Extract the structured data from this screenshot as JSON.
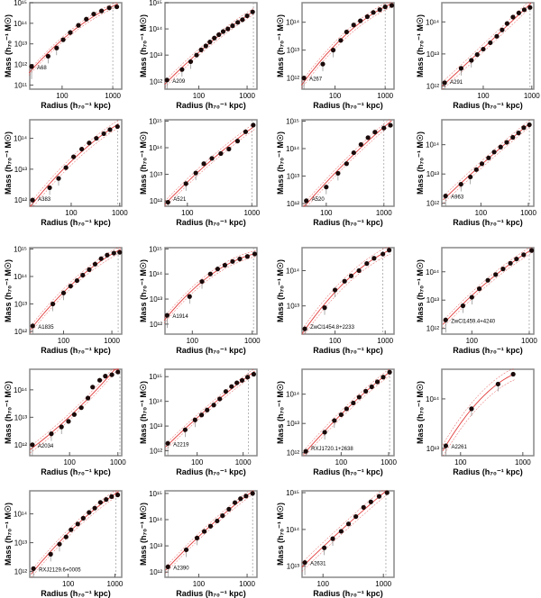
{
  "chart_data": {
    "type": "scatter",
    "layout": "grid 5 rows x 4 columns (19 panels)",
    "xlabel": "Radius (h₇₀⁻¹ kpc)",
    "ylabel": "Mass (h₇₀⁻¹ M☉)",
    "xscale": "log",
    "yscale": "log",
    "colors": {
      "points": "#1a0a0a",
      "fit": "#e23b3b",
      "rline": "#999999"
    },
    "panels": [
      {
        "name": "A68",
        "xlim": [
          23,
          1500
        ],
        "ylim_log": [
          10.8,
          15
        ],
        "rline": 1000,
        "x": [
          25,
          53,
          78,
          105,
          145,
          210,
          300,
          420,
          600,
          850,
          1200
        ],
        "log10_mass": [
          11.9,
          12.4,
          12.8,
          13.2,
          13.55,
          13.9,
          14.2,
          14.45,
          14.6,
          14.75,
          14.8
        ]
      },
      {
        "name": "A209",
        "xlim": [
          20,
          1600
        ],
        "ylim_log": [
          11.7,
          15
        ],
        "rline": 1350,
        "x": [
          22,
          45,
          68,
          90,
          112,
          140,
          170,
          210,
          260,
          320,
          400,
          500,
          640,
          800,
          1000,
          1300
        ],
        "log10_mass": [
          12.05,
          12.45,
          12.75,
          13.0,
          13.2,
          13.35,
          13.5,
          13.65,
          13.78,
          13.9,
          14.0,
          14.12,
          14.25,
          14.35,
          14.5,
          14.65
        ]
      },
      {
        "name": "A267",
        "xlim": [
          22,
          1500
        ],
        "ylim_log": [
          11.6,
          14.7
        ],
        "rline": 1000,
        "x": [
          24,
          57,
          92,
          130,
          170,
          235,
          320,
          440,
          580,
          780,
          1000,
          1350
        ],
        "log10_mass": [
          12.0,
          12.5,
          13.0,
          13.35,
          13.65,
          13.9,
          14.05,
          14.2,
          14.35,
          14.45,
          14.55,
          14.6
        ]
      },
      {
        "name": "A291",
        "xlim": [
          14,
          1100
        ],
        "ylim_log": [
          11.9,
          14.6
        ],
        "rline": 920,
        "x": [
          16,
          35,
          57,
          75,
          100,
          140,
          190,
          245,
          310,
          410,
          540,
          700,
          920
        ],
        "log10_mass": [
          12.1,
          12.55,
          12.8,
          12.98,
          13.15,
          13.35,
          13.55,
          13.75,
          13.95,
          14.15,
          14.28,
          14.38,
          14.45
        ]
      },
      {
        "name": "A383",
        "xlim": [
          14,
          1100
        ],
        "ylim_log": [
          11.8,
          14.6
        ],
        "rline": 900,
        "x": [
          16,
          36,
          55,
          78,
          112,
          165,
          235,
          330,
          470,
          630,
          900
        ],
        "log10_mass": [
          12.0,
          12.4,
          12.7,
          13.05,
          13.4,
          13.65,
          13.85,
          14.0,
          14.15,
          14.28,
          14.38
        ]
      },
      {
        "name": "A521",
        "xlim": [
          45,
          1200
        ],
        "ylim_log": [
          11.8,
          15.05
        ],
        "rline": 1000,
        "x": [
          50,
          95,
          135,
          180,
          240,
          330,
          440,
          600,
          800,
          1050
        ],
        "log10_mass": [
          11.95,
          12.65,
          13.05,
          13.4,
          13.6,
          13.78,
          13.95,
          14.25,
          14.6,
          14.85
        ]
      },
      {
        "name": "A520",
        "xlim": [
          38,
          1500
        ],
        "ylim_log": [
          11.9,
          15.05
        ],
        "rline": 1000,
        "x": [
          45,
          100,
          160,
          225,
          300,
          400,
          530,
          700,
          1000,
          1300
        ],
        "log10_mass": [
          12.1,
          12.6,
          13.1,
          13.45,
          13.85,
          14.15,
          14.4,
          14.6,
          14.75,
          14.85
        ]
      },
      {
        "name": "A963",
        "xlim": [
          15,
          1300
        ],
        "ylim_log": [
          11.9,
          14.85
        ],
        "rline": 1050,
        "x": [
          18,
          38,
          60,
          80,
          105,
          145,
          190,
          260,
          350,
          470,
          620,
          800,
          1050
        ],
        "log10_mass": [
          12.25,
          12.65,
          12.9,
          13.15,
          13.35,
          13.55,
          13.75,
          13.92,
          14.08,
          14.25,
          14.4,
          14.58,
          14.68
        ]
      },
      {
        "name": "A1835",
        "xlim": [
          20,
          1600
        ],
        "ylim_log": [
          11.9,
          15.05
        ],
        "rline": 1350,
        "x": [
          23,
          60,
          100,
          140,
          190,
          250,
          340,
          450,
          600,
          800,
          1100,
          1450
        ],
        "log10_mass": [
          12.2,
          13.0,
          13.4,
          13.65,
          13.85,
          14.05,
          14.25,
          14.45,
          14.65,
          14.78,
          14.85,
          14.88
        ]
      },
      {
        "name": "A1914",
        "xlim": [
          35,
          1200
        ],
        "ylim_log": [
          11.6,
          15.05
        ],
        "rline": 1050,
        "x": [
          38,
          90,
          145,
          200,
          265,
          350,
          470,
          620,
          830,
          1100
        ],
        "log10_mass": [
          12.35,
          13.1,
          13.7,
          14.0,
          14.2,
          14.35,
          14.5,
          14.6,
          14.7,
          14.8
        ]
      },
      {
        "name": "ZwCl1454.8+2233",
        "xlim": [
          22,
          1500
        ],
        "ylim_log": [
          12.2,
          14.65
        ],
        "rline": 900,
        "x": [
          25,
          62,
          100,
          155,
          210,
          300,
          430,
          600,
          900,
          1200
        ],
        "log10_mass": [
          12.35,
          12.95,
          13.45,
          13.7,
          13.85,
          14.0,
          14.2,
          14.35,
          14.47,
          14.58
        ]
      },
      {
        "name": "ZwCl1459.4+4240",
        "xlim": [
          30,
          1200
        ],
        "ylim_log": [
          11.8,
          14.85
        ],
        "rline": 1000,
        "x": [
          35,
          70,
          100,
          135,
          190,
          260,
          350,
          470,
          600,
          800,
          1100
        ],
        "log10_mass": [
          12.3,
          12.8,
          13.1,
          13.4,
          13.7,
          13.9,
          14.1,
          14.3,
          14.45,
          14.6,
          14.75
        ]
      },
      {
        "name": "A2034",
        "xlim": [
          15,
          1200
        ],
        "ylim_log": [
          11.6,
          14.75
        ],
        "rline": 1100,
        "x": [
          17,
          42,
          68,
          95,
          125,
          175,
          240,
          300,
          420,
          550,
          750,
          1000
        ],
        "log10_mass": [
          12.0,
          12.4,
          12.65,
          12.85,
          13.1,
          13.35,
          13.7,
          14.1,
          14.35,
          14.5,
          14.55,
          14.65
        ]
      },
      {
        "name": "A2219",
        "xlim": [
          20,
          2000
        ],
        "ylim_log": [
          11.8,
          15.3
        ],
        "rline": 1300,
        "x": [
          23,
          55,
          90,
          125,
          165,
          230,
          310,
          420,
          560,
          730,
          950,
          1250,
          1700
        ],
        "log10_mass": [
          12.3,
          12.85,
          13.25,
          13.45,
          13.65,
          13.85,
          14.1,
          14.4,
          14.6,
          14.75,
          14.85,
          14.98,
          15.1
        ]
      },
      {
        "name": "RXJ1720.1+2638",
        "xlim": [
          15,
          1300
        ],
        "ylim_log": [
          11.9,
          14.85
        ],
        "rline": 1050,
        "x": [
          18,
          45,
          72,
          100,
          130,
          180,
          240,
          330,
          440,
          580,
          770,
          1050
        ],
        "log10_mass": [
          12.05,
          12.7,
          13.1,
          13.3,
          13.5,
          13.7,
          13.9,
          14.1,
          14.25,
          14.42,
          14.58,
          14.75
        ]
      },
      {
        "name": "A2261",
        "xlim": [
          50,
          1500
        ],
        "ylim_log": [
          12.85,
          14.6
        ],
        "rline": null,
        "x": [
          58,
          150,
          400,
          700
        ],
        "log10_mass": [
          13.05,
          13.8,
          14.3,
          14.5
        ]
      },
      {
        "name": "RXJ2129.6+0005",
        "xlim": [
          15,
          1400
        ],
        "ylim_log": [
          11.8,
          14.8
        ],
        "rline": 1050,
        "x": [
          18,
          42,
          65,
          90,
          115,
          160,
          210,
          280,
          370,
          490,
          650,
          850,
          1150
        ],
        "log10_mass": [
          12.1,
          12.6,
          12.95,
          13.2,
          13.45,
          13.65,
          13.85,
          14.05,
          14.2,
          14.4,
          14.5,
          14.6,
          14.66
        ]
      },
      {
        "name": "A2390",
        "xlim": [
          20,
          1600
        ],
        "ylim_log": [
          11.8,
          15.1
        ],
        "rline": 1300,
        "x": [
          23,
          55,
          92,
          130,
          175,
          240,
          310,
          420,
          560,
          730,
          950,
          1300
        ],
        "log10_mass": [
          12.2,
          12.85,
          13.3,
          13.55,
          13.75,
          13.95,
          14.15,
          14.4,
          14.65,
          14.8,
          14.9,
          15.0
        ]
      },
      {
        "name": "A2631",
        "xlim": [
          45,
          1500
        ],
        "ylim_log": [
          12.7,
          15.05
        ],
        "rline": 1100,
        "x": [
          50,
          105,
          145,
          200,
          265,
          350,
          470,
          620,
          850,
          1150
        ],
        "log10_mass": [
          13.1,
          13.5,
          13.75,
          13.95,
          14.15,
          14.35,
          14.6,
          14.75,
          14.9,
          15.0
        ]
      }
    ]
  }
}
